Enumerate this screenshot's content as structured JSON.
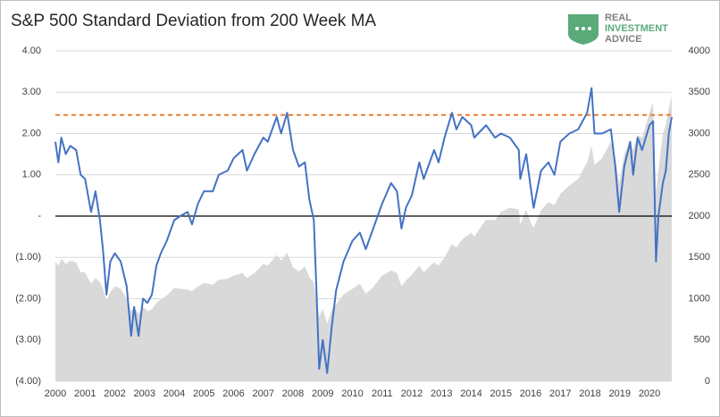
{
  "chart_data": {
    "type": "line_area",
    "title": "S&P 500 Standard Deviation from 200 Week MA",
    "logo": [
      "REAL",
      "INVESTMENT",
      "ADVICE"
    ],
    "x": [
      2000.0,
      2000.1,
      2000.2,
      2000.35,
      2000.5,
      2000.7,
      2000.85,
      2001.0,
      2001.2,
      2001.35,
      2001.5,
      2001.6,
      2001.72,
      2001.85,
      2002.0,
      2002.2,
      2002.4,
      2002.55,
      2002.65,
      2002.8,
      2002.95,
      2003.1,
      2003.25,
      2003.4,
      2003.55,
      2003.75,
      2004.0,
      2004.2,
      2004.45,
      2004.6,
      2004.8,
      2005.0,
      2005.3,
      2005.5,
      2005.8,
      2006.0,
      2006.3,
      2006.45,
      2006.7,
      2007.0,
      2007.15,
      2007.45,
      2007.6,
      2007.8,
      2008.0,
      2008.2,
      2008.4,
      2008.55,
      2008.7,
      2008.8,
      2008.88,
      2009.0,
      2009.15,
      2009.3,
      2009.45,
      2009.7,
      2010.0,
      2010.25,
      2010.45,
      2010.7,
      2011.0,
      2011.3,
      2011.5,
      2011.65,
      2011.8,
      2012.0,
      2012.25,
      2012.4,
      2012.75,
      2012.9,
      2013.1,
      2013.35,
      2013.5,
      2013.7,
      2014.0,
      2014.1,
      2014.5,
      2014.8,
      2015.0,
      2015.3,
      2015.6,
      2015.65,
      2015.85,
      2016.0,
      2016.1,
      2016.35,
      2016.6,
      2016.8,
      2017.0,
      2017.3,
      2017.6,
      2017.9,
      2018.05,
      2018.15,
      2018.4,
      2018.7,
      2018.85,
      2018.98,
      2019.15,
      2019.35,
      2019.45,
      2019.6,
      2019.75,
      2020.0,
      2020.12,
      2020.22,
      2020.3,
      2020.45,
      2020.55,
      2020.65,
      2020.75
    ],
    "series": [
      {
        "color": "#d9d9d9",
        "axis": "y2",
        "values": [
          1450,
          1400,
          1480,
          1420,
          1460,
          1440,
          1320,
          1320,
          1180,
          1250,
          1200,
          1120,
          980,
          1080,
          1150,
          1120,
          1000,
          850,
          900,
          820,
          900,
          850,
          870,
          950,
          990,
          1040,
          1130,
          1120,
          1110,
          1090,
          1150,
          1190,
          1170,
          1230,
          1240,
          1280,
          1310,
          1250,
          1310,
          1420,
          1400,
          1530,
          1460,
          1560,
          1380,
          1330,
          1390,
          1260,
          1200,
          950,
          780,
          880,
          700,
          860,
          930,
          1050,
          1120,
          1180,
          1060,
          1140,
          1280,
          1340,
          1310,
          1150,
          1220,
          1290,
          1400,
          1320,
          1440,
          1400,
          1500,
          1660,
          1620,
          1720,
          1800,
          1750,
          1960,
          1950,
          2050,
          2100,
          2080,
          1900,
          2080,
          1920,
          1860,
          2070,
          2170,
          2130,
          2270,
          2370,
          2450,
          2650,
          2850,
          2620,
          2700,
          2900,
          2700,
          2400,
          2750,
          2900,
          2800,
          2980,
          2950,
          3250,
          3380,
          2300,
          2550,
          3000,
          3100,
          3300,
          3450
        ]
      },
      {
        "color": "#4472c4",
        "values": [
          1.8,
          1.3,
          1.9,
          1.5,
          1.7,
          1.6,
          1.0,
          0.9,
          0.1,
          0.6,
          -0.1,
          -0.8,
          -1.9,
          -1.1,
          -0.9,
          -1.1,
          -1.7,
          -2.9,
          -2.2,
          -2.9,
          -2.0,
          -2.1,
          -1.9,
          -1.2,
          -0.9,
          -0.6,
          -0.1,
          0.0,
          0.1,
          -0.2,
          0.3,
          0.6,
          0.6,
          1.0,
          1.1,
          1.4,
          1.6,
          1.1,
          1.5,
          1.9,
          1.8,
          2.4,
          2.0,
          2.5,
          1.6,
          1.2,
          1.3,
          0.4,
          -0.1,
          -2.0,
          -3.7,
          -3.0,
          -3.8,
          -2.7,
          -1.8,
          -1.1,
          -0.6,
          -0.4,
          -0.8,
          -0.3,
          0.3,
          0.8,
          0.6,
          -0.3,
          0.2,
          0.5,
          1.3,
          0.9,
          1.6,
          1.3,
          1.9,
          2.5,
          2.1,
          2.4,
          2.2,
          1.9,
          2.2,
          1.9,
          2.0,
          1.9,
          1.6,
          0.9,
          1.5,
          0.7,
          0.2,
          1.1,
          1.3,
          1.0,
          1.8,
          2.0,
          2.1,
          2.5,
          3.1,
          2.0,
          2.0,
          2.1,
          1.2,
          0.1,
          1.2,
          1.8,
          1.0,
          1.9,
          1.6,
          2.2,
          2.3,
          -1.1,
          0.0,
          0.8,
          1.1,
          2.0,
          2.4
        ]
      }
    ],
    "threshold": 2.45,
    "threshold_color": "#ed7d31",
    "xlim": [
      2000,
      2020.75
    ],
    "xticks": [
      2000,
      2001,
      2002,
      2003,
      2004,
      2005,
      2006,
      2007,
      2008,
      2009,
      2010,
      2011,
      2012,
      2013,
      2014,
      2015,
      2016,
      2017,
      2018,
      2019,
      2020
    ],
    "ylim": [
      -4,
      4
    ],
    "yticks": [
      {
        "value": 4,
        "label": "4.00"
      },
      {
        "value": 3,
        "label": "3.00"
      },
      {
        "value": 2,
        "label": "2.00"
      },
      {
        "value": 1,
        "label": "1.00"
      },
      {
        "value": 0,
        "label": "-"
      },
      {
        "value": -1,
        "label": "(1.00)"
      },
      {
        "value": -2,
        "label": "(2.00)"
      },
      {
        "value": -3,
        "label": "(3.00)"
      },
      {
        "value": -4,
        "label": "(4.00)"
      }
    ],
    "y2lim": [
      0,
      4000
    ],
    "y2ticks": [
      0,
      500,
      1000,
      1500,
      2000,
      2500,
      3000,
      3500,
      4000
    ],
    "grid": true
  }
}
